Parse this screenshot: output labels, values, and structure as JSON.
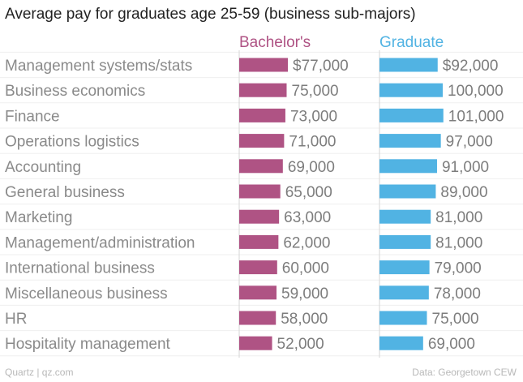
{
  "chart_data": {
    "type": "bar",
    "title": "Average pay for graduates age 25-59 (business sub-majors)",
    "categories": [
      "Management systems/stats",
      "Business economics",
      "Finance",
      "Operations logistics",
      "Accounting",
      "General business",
      "Marketing",
      "Management/administration",
      "International business",
      "Miscellaneous business",
      "HR",
      "Hospitality management"
    ],
    "series": [
      {
        "name": "Bachelor's",
        "color": "#af5384",
        "values": [
          77000,
          75000,
          73000,
          71000,
          69000,
          65000,
          63000,
          62000,
          60000,
          59000,
          58000,
          52000
        ],
        "labels": [
          "$77,000",
          "75,000",
          "73,000",
          "71,000",
          "69,000",
          "65,000",
          "63,000",
          "62,000",
          "60,000",
          "59,000",
          "58,000",
          "52,000"
        ]
      },
      {
        "name": "Graduate",
        "color": "#51b3e3",
        "values": [
          92000,
          100000,
          101000,
          97000,
          91000,
          89000,
          81000,
          81000,
          79000,
          78000,
          75000,
          69000
        ],
        "labels": [
          "$92,000",
          "100,000",
          "101,000",
          "97,000",
          "91,000",
          "89,000",
          "81,000",
          "81,000",
          "79,000",
          "78,000",
          "75,000",
          "69,000"
        ]
      }
    ],
    "grid": true,
    "legend": "top"
  },
  "footer": {
    "source_left": "Quartz | qz.com",
    "source_right": "Data: Georgetown CEW"
  }
}
